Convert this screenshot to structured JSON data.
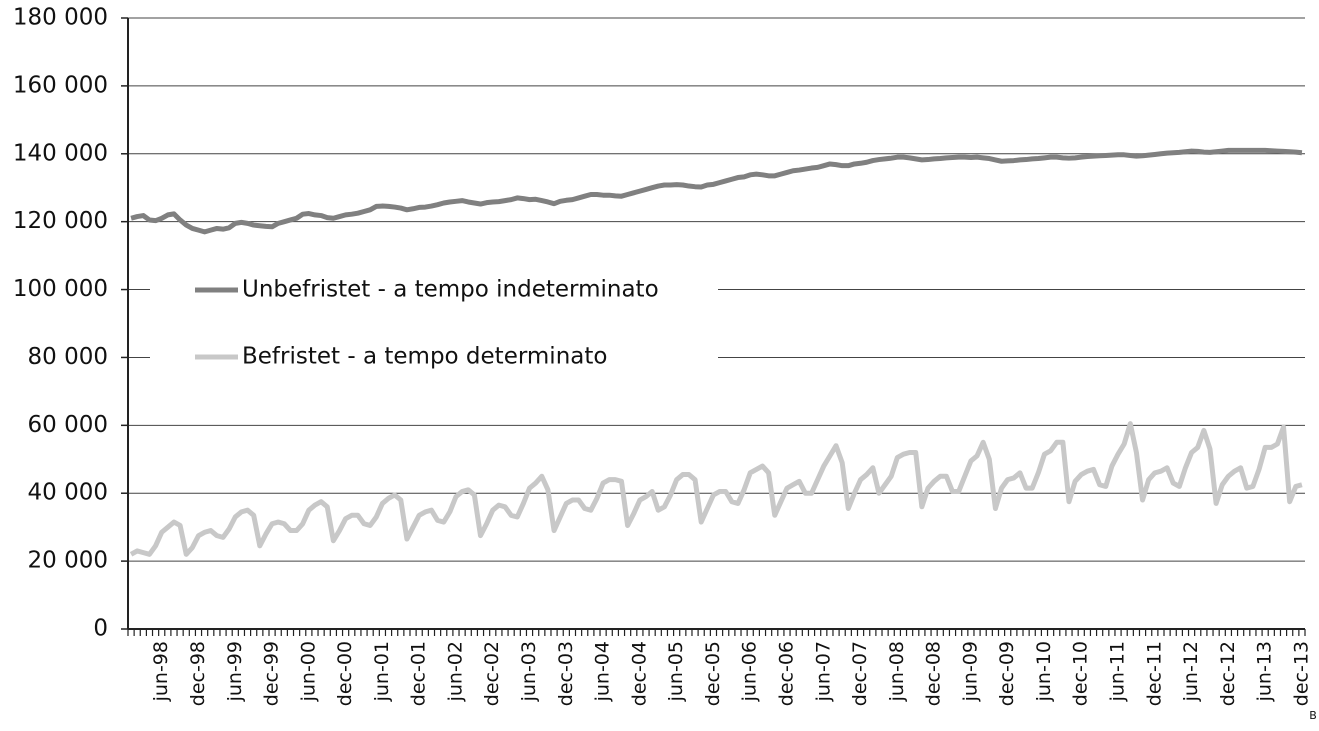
{
  "chart_data": {
    "type": "line",
    "note": "B",
    "categories": [
      null,
      null,
      null,
      null,
      null,
      "jun-98",
      null,
      null,
      null,
      null,
      null,
      "dec-98",
      null,
      null,
      null,
      null,
      null,
      "jun-99",
      null,
      null,
      null,
      null,
      null,
      "dec-99",
      null,
      null,
      null,
      null,
      null,
      "jun-00",
      null,
      null,
      null,
      null,
      null,
      "dec-00",
      null,
      null,
      null,
      null,
      null,
      "jun-01",
      null,
      null,
      null,
      null,
      null,
      "dec-01",
      null,
      null,
      null,
      null,
      null,
      "jun-02",
      null,
      null,
      null,
      null,
      null,
      "dec-02",
      null,
      null,
      null,
      null,
      null,
      "jun-03",
      null,
      null,
      null,
      null,
      null,
      "dec-03",
      null,
      null,
      null,
      null,
      null,
      "jun-04",
      null,
      null,
      null,
      null,
      null,
      "dec-04",
      null,
      null,
      null,
      null,
      null,
      "jun-05",
      null,
      null,
      null,
      null,
      null,
      "dec-05",
      null,
      null,
      null,
      null,
      null,
      "jun-06",
      null,
      null,
      null,
      null,
      null,
      "dec-06",
      null,
      null,
      null,
      null,
      null,
      "jun-07",
      null,
      null,
      null,
      null,
      null,
      "dec-07",
      null,
      null,
      null,
      null,
      null,
      "jun-08",
      null,
      null,
      null,
      null,
      null,
      "dec-08",
      null,
      null,
      null,
      null,
      null,
      "jun-09",
      null,
      null,
      null,
      null,
      null,
      "dec-09",
      null,
      null,
      null,
      null,
      null,
      "jun-10",
      null,
      null,
      null,
      null,
      null,
      "dec-10",
      null,
      null,
      null,
      null,
      null,
      "jun-11",
      null,
      null,
      null,
      null,
      null,
      "dec-11",
      null,
      null,
      null,
      null,
      null,
      "jun-12",
      null,
      null,
      null,
      null,
      null,
      "dec-12",
      null,
      null,
      null,
      null,
      null,
      "jun-13",
      null,
      null,
      null,
      null,
      null,
      "dec-13"
    ],
    "series": [
      {
        "name": "Unbefristet - a tempo indeterminato",
        "color": "#808080",
        "values": [
          121000,
          121500,
          121800,
          120500,
          120300,
          121000,
          122000,
          122300,
          120500,
          119000,
          118000,
          117500,
          117000,
          117500,
          118000,
          117800,
          118200,
          119500,
          119800,
          119500,
          119000,
          118800,
          118600,
          118500,
          119500,
          120000,
          120500,
          121000,
          122200,
          122400,
          122000,
          121800,
          121200,
          121000,
          121500,
          122000,
          122200,
          122500,
          123000,
          123500,
          124500,
          124600,
          124500,
          124300,
          124000,
          123500,
          123800,
          124200,
          124300,
          124600,
          125000,
          125500,
          125800,
          126000,
          126200,
          125800,
          125500,
          125200,
          125600,
          125800,
          125900,
          126200,
          126500,
          127000,
          126800,
          126500,
          126600,
          126200,
          125800,
          125300,
          126000,
          126300,
          126500,
          127000,
          127500,
          128000,
          128000,
          127800,
          127800,
          127600,
          127500,
          128000,
          128500,
          129000,
          129500,
          130000,
          130500,
          130800,
          130800,
          130900,
          130800,
          130500,
          130300,
          130200,
          130800,
          131000,
          131500,
          132000,
          132500,
          133000,
          133200,
          133800,
          134000,
          133800,
          133500,
          133500,
          134000,
          134500,
          135000,
          135200,
          135500,
          135800,
          136000,
          136500,
          137000,
          136800,
          136500,
          136500,
          137000,
          137200,
          137500,
          138000,
          138300,
          138500,
          138700,
          139000,
          139000,
          138800,
          138500,
          138200,
          138300,
          138500,
          138600,
          138800,
          138900,
          139000,
          139000,
          138900,
          139000,
          138800,
          138600,
          138200,
          137800,
          137900,
          138000,
          138200,
          138300,
          138500,
          138600,
          138800,
          139000,
          139000,
          138800,
          138700,
          138800,
          139000,
          139200,
          139300,
          139400,
          139500,
          139600,
          139700,
          139700,
          139500,
          139300,
          139400,
          139600,
          139800,
          140000,
          140200,
          140300,
          140400,
          140600,
          140800,
          140700,
          140500,
          140400,
          140600,
          140800,
          141000,
          141000,
          141000,
          141000,
          141000,
          141000,
          141000,
          140900,
          140800,
          140700,
          140600,
          140500,
          140300
        ]
      },
      {
        "name": "Befristet - a tempo determinato",
        "color": "#c8c8c8",
        "values": [
          22000,
          23000,
          22500,
          22000,
          24500,
          28500,
          30000,
          31500,
          30500,
          22000,
          24000,
          27500,
          28500,
          29000,
          27500,
          27000,
          29500,
          33000,
          34500,
          35000,
          33500,
          24500,
          28000,
          31000,
          31500,
          31000,
          29000,
          29000,
          31000,
          35000,
          36500,
          37500,
          36000,
          26000,
          29000,
          32500,
          33500,
          33500,
          31000,
          30500,
          33000,
          37000,
          38500,
          39500,
          38000,
          26500,
          30000,
          33500,
          34500,
          35000,
          32000,
          31500,
          34500,
          39000,
          40500,
          41000,
          39500,
          27500,
          31000,
          35000,
          36500,
          36000,
          33500,
          33000,
          37000,
          41500,
          43000,
          45000,
          41000,
          29000,
          33000,
          37000,
          38000,
          38000,
          35500,
          35000,
          38500,
          43000,
          44000,
          44000,
          43500,
          30500,
          34000,
          38000,
          39000,
          40500,
          35000,
          36000,
          39500,
          44000,
          45500,
          45500,
          44000,
          31500,
          35500,
          39500,
          40500,
          40500,
          37500,
          37000,
          41000,
          46000,
          47000,
          48000,
          46000,
          33500,
          37500,
          41500,
          42500,
          43500,
          40000,
          40000,
          44000,
          48000,
          51000,
          54000,
          49000,
          35500,
          40000,
          44000,
          45500,
          47500,
          40000,
          42500,
          45000,
          50500,
          51500,
          52000,
          52000,
          36000,
          41500,
          43500,
          45000,
          45000,
          40500,
          40500,
          45000,
          49500,
          51000,
          55000,
          50000,
          35500,
          41500,
          44000,
          44500,
          46000,
          41500,
          41500,
          46000,
          51500,
          52500,
          55000,
          55000,
          37500,
          43500,
          45500,
          46500,
          47000,
          42500,
          42000,
          48000,
          51500,
          54500,
          60500,
          52000,
          38000,
          44000,
          46000,
          46500,
          47500,
          43000,
          42000,
          47500,
          52000,
          53500,
          58500,
          53000,
          37000,
          42500,
          45000,
          46500,
          47500,
          41500,
          42000,
          47000,
          53500,
          53500,
          54500,
          59500,
          37500,
          42000,
          42500
        ]
      }
    ],
    "ylim": [
      0,
      180000
    ],
    "yticks": [
      0,
      {
        "value": 20000,
        "label": "20 000"
      },
      {
        "value": 40000,
        "label": "40 000"
      },
      {
        "value": 60000,
        "label": "60 000"
      },
      {
        "value": 80000,
        "label": "80 000"
      },
      {
        "value": 100000,
        "label": "100 000"
      },
      {
        "value": 120000,
        "label": "120 000"
      },
      {
        "value": 140000,
        "label": "140 000"
      },
      {
        "value": 160000,
        "label": "160 000"
      },
      {
        "value": 180000,
        "label": "180 000"
      }
    ],
    "grid": true,
    "legend": "left"
  }
}
